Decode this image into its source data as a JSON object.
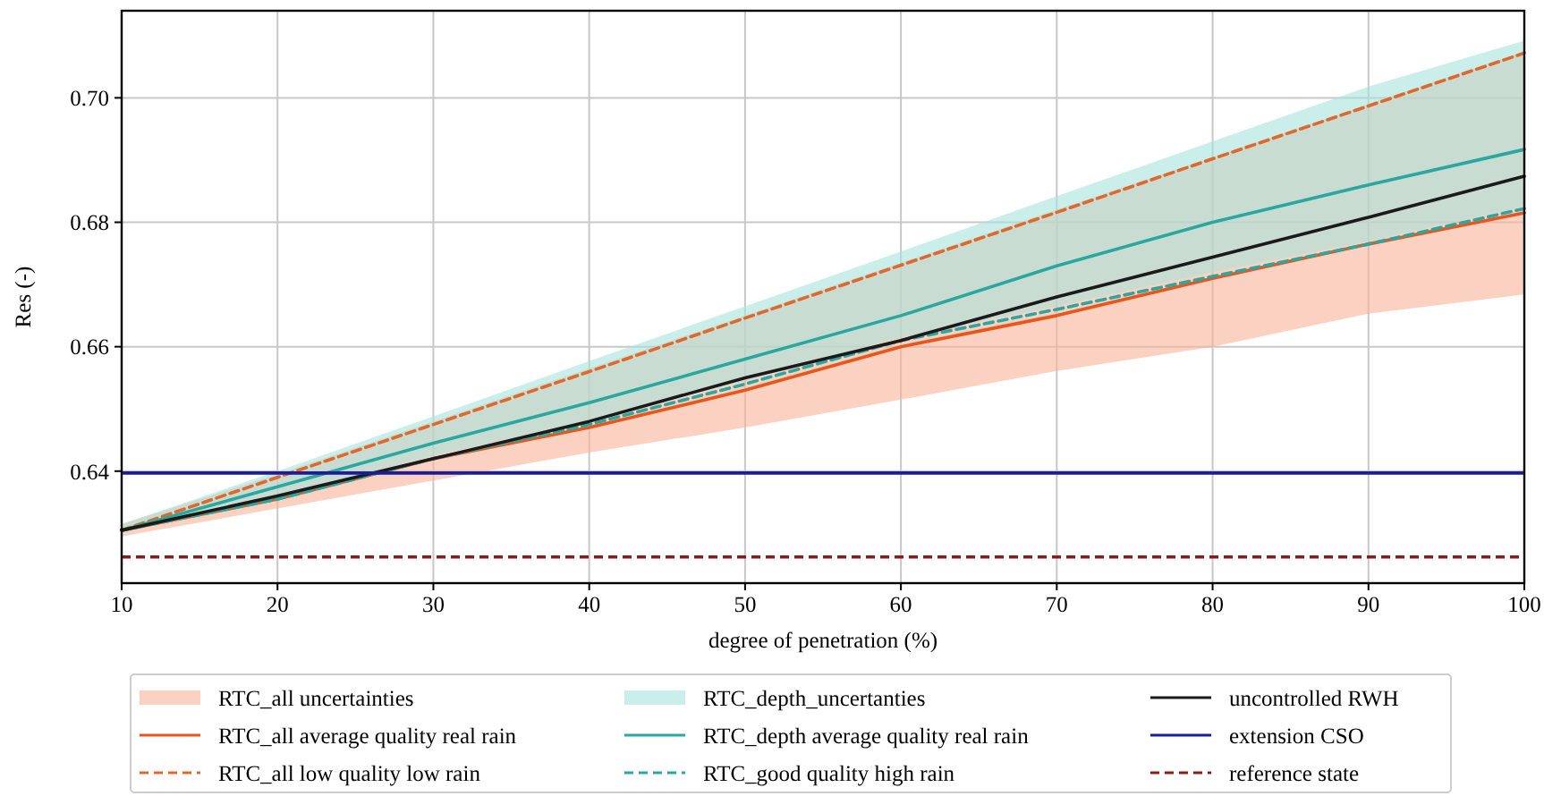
{
  "chart_data": {
    "type": "line",
    "xlabel": "degree of penetration (%)",
    "ylabel": "Res (-)",
    "x": [
      10,
      20,
      30,
      40,
      50,
      60,
      70,
      80,
      90,
      100
    ],
    "xlim": [
      10,
      100
    ],
    "xticks": [
      10,
      20,
      30,
      40,
      50,
      60,
      70,
      80,
      90,
      100
    ],
    "ylim": [
      0.622,
      0.714
    ],
    "yticks": [
      0.64,
      0.66,
      0.68,
      {
        "value": 0.7,
        "label": "0.70"
      }
    ],
    "grid": true,
    "legend": "bottom",
    "marker": "none",
    "series": [
      {
        "type": "area",
        "name": "RTC_all uncertainties",
        "color": "#f9b49a",
        "values": [
          null,
          null,
          null,
          null,
          null,
          null,
          null,
          null,
          null,
          null
        ],
        "lower": [
          0.6295,
          0.634,
          0.6385,
          0.643,
          0.647,
          0.6515,
          0.6561,
          0.66,
          0.6653,
          0.6684
        ],
        "upper": [
          0.6315,
          0.6395,
          0.648,
          0.6565,
          0.665,
          0.6735,
          0.682,
          0.6905,
          0.699,
          0.7075
        ]
      },
      {
        "type": "line",
        "name": "RTC_all average quality real rain",
        "color": "#e8561c",
        "line_style": "solid",
        "values": [
          0.6305,
          0.6355,
          0.642,
          0.647,
          0.653,
          0.66,
          0.665,
          0.671,
          0.6765,
          0.6815
        ]
      },
      {
        "type": "line",
        "name": "RTC_all low quality low rain",
        "color": "#e0682a",
        "line_style": "dashed",
        "values": [
          0.6305,
          0.639,
          0.6475,
          0.656,
          0.6646,
          0.6731,
          0.6816,
          0.6902,
          0.6987,
          0.7072
        ]
      },
      {
        "type": "area",
        "name": "RTC_depth_uncertanties",
        "color": "#a6e2dc",
        "values": [
          null,
          null,
          null,
          null,
          null,
          null,
          null,
          null,
          null,
          null
        ],
        "lower": [
          0.63,
          0.636,
          0.6425,
          0.648,
          0.6545,
          0.6615,
          0.6665,
          0.672,
          0.677,
          0.6825
        ],
        "upper": [
          0.6315,
          0.64,
          0.6488,
          0.6577,
          0.6665,
          0.6753,
          0.6842,
          0.693,
          0.7018,
          0.7092
        ]
      },
      {
        "type": "line",
        "name": "RTC_depth average quality real rain",
        "color": "#2aa8a0",
        "line_style": "solid",
        "values": [
          0.6305,
          0.6375,
          0.6445,
          0.651,
          0.658,
          0.665,
          0.673,
          0.68,
          0.686,
          0.6917
        ]
      },
      {
        "type": "line",
        "name": "RTC_good quality high rain",
        "color": "#2aa8a0",
        "line_style": "dashed",
        "values": [
          0.6305,
          0.6355,
          0.642,
          0.6475,
          0.654,
          0.661,
          0.666,
          0.6713,
          0.6765,
          0.6822
        ]
      },
      {
        "type": "line",
        "name": "uncontrolled RWH",
        "color": "#1a1a1a",
        "line_style": "solid",
        "values": [
          0.6305,
          0.636,
          0.642,
          0.648,
          0.655,
          0.661,
          0.668,
          0.6744,
          0.6808,
          0.6874
        ]
      }
    ],
    "ref_lines": [
      {
        "axis": "y",
        "value": 0.6397,
        "label": "extension CSO",
        "color": "#1c1c9a",
        "line_style": "solid"
      },
      {
        "axis": "y",
        "value": 0.6262,
        "label": "reference state",
        "color": "#8b1a1a",
        "line_style": "dashed"
      }
    ]
  }
}
